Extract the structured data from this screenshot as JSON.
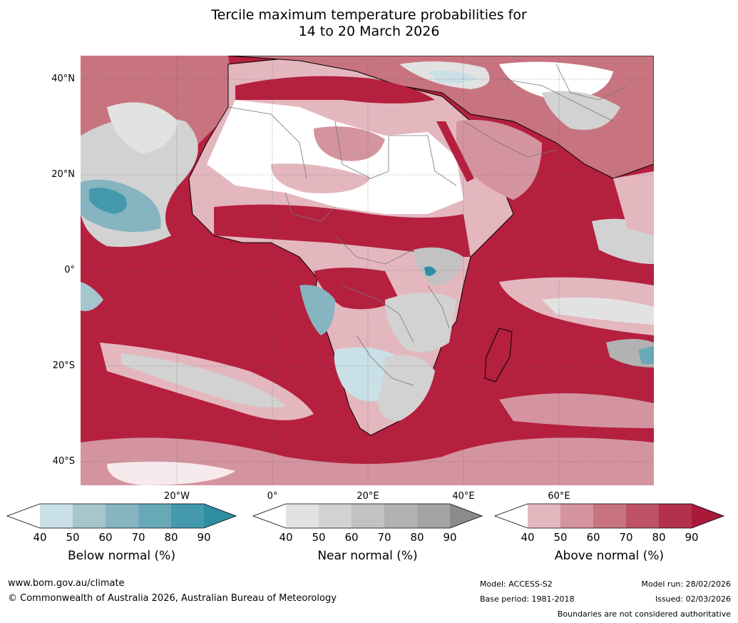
{
  "title": {
    "line1": "Tercile maximum temperature probabilities for",
    "line2": "14 to 20 March 2026"
  },
  "map": {
    "lat_labels": [
      "40°N",
      "20°N",
      "0°",
      "20°S",
      "40°S"
    ],
    "lon_labels": [
      "20°W",
      "0°",
      "20°E",
      "40°E",
      "60°E"
    ],
    "ocean_fill": "#b5203f",
    "land_fill": "#e4b7bf"
  },
  "legend": {
    "below": {
      "title": "Below normal (%)",
      "ticks": [
        "40",
        "50",
        "60",
        "70",
        "80",
        "90"
      ],
      "colors": [
        "#ffffff",
        "#c8e0e6",
        "#a6c6cd",
        "#86b4c0",
        "#68a9b7",
        "#4599ad",
        "#2d8ea3"
      ]
    },
    "near": {
      "title": "Near normal (%)",
      "ticks": [
        "40",
        "50",
        "60",
        "70",
        "80",
        "90"
      ],
      "colors": [
        "#ffffff",
        "#e2e2e2",
        "#d2d2d2",
        "#c2c2c2",
        "#b2b2b2",
        "#a3a3a3",
        "#8b8b8b"
      ]
    },
    "above": {
      "title": "Above normal (%)",
      "ticks": [
        "40",
        "50",
        "60",
        "70",
        "80",
        "90"
      ],
      "colors": [
        "#ffffff",
        "#e4b7bf",
        "#d4949f",
        "#c87480",
        "#bd5365",
        "#b3314d",
        "#a9193a"
      ]
    }
  },
  "footer": {
    "url": "www.bom.gov.au/climate",
    "copyright": "© Commonwealth of Australia 2026, Australian Bureau of Meteorology",
    "model": "Model: ACCESS-S2",
    "base_period": "Base period: 1981-2018",
    "model_run": "Model run: 28/02/2026",
    "issued": "Issued: 02/03/2026",
    "disclaimer": "Boundaries are not considered authoritative"
  }
}
